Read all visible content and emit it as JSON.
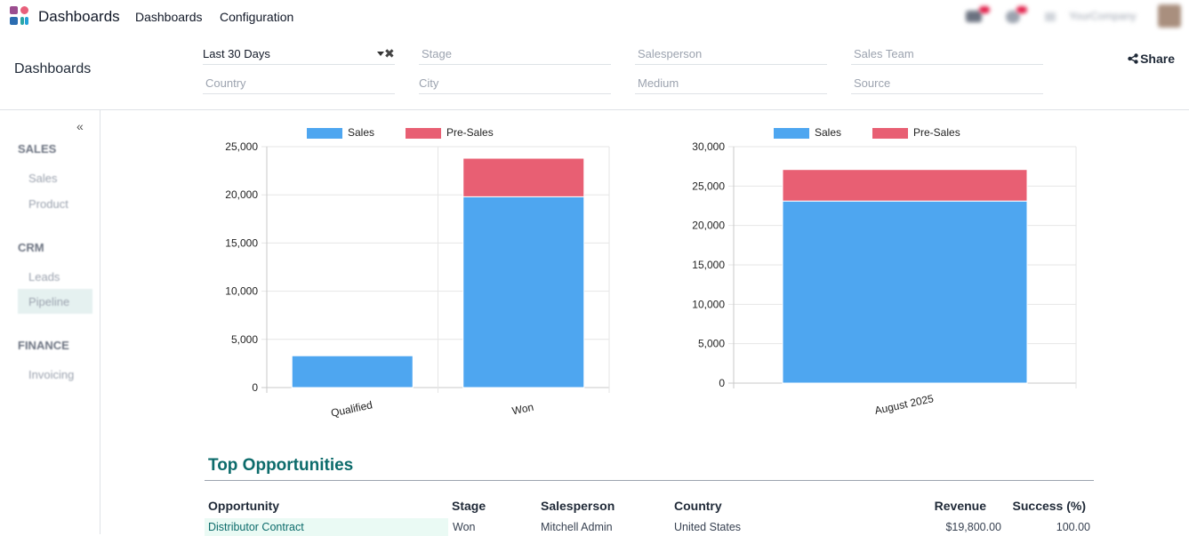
{
  "topbar": {
    "app_title": "Dashboards",
    "menu": [
      "Dashboards",
      "Configuration"
    ],
    "company": "YourCompany"
  },
  "control": {
    "breadcrumb": "Dashboards",
    "filters": {
      "date_range": "Last 30 Days",
      "stage": "Stage",
      "salesperson": "Salesperson",
      "sales_team": "Sales Team",
      "country": "Country",
      "city": "City",
      "medium": "Medium",
      "source": "Source"
    },
    "share_label": "Share"
  },
  "sidebar": {
    "collapse_label": "«",
    "sections": [
      {
        "title": "SALES",
        "items": [
          "Sales",
          "Product"
        ]
      },
      {
        "title": "CRM",
        "items": [
          "Leads",
          "Pipeline"
        ]
      },
      {
        "title": "FINANCE",
        "items": [
          "Invoicing"
        ]
      }
    ],
    "active_item": "Pipeline"
  },
  "colors": {
    "sales": "#4ea6f0",
    "pre_sales": "#e85f73",
    "accent": "#0c6b6b",
    "link_bg": "#eafaf4"
  },
  "chart_data": [
    {
      "type": "bar",
      "stacked": true,
      "categories": [
        "Qualified",
        "Won"
      ],
      "series": [
        {
          "name": "Sales",
          "values": [
            3300,
            19800
          ]
        },
        {
          "name": "Pre-Sales",
          "values": [
            0,
            4000
          ]
        }
      ],
      "ylim": [
        0,
        25000
      ],
      "yticks": [
        0,
        5000,
        10000,
        15000,
        20000,
        25000
      ],
      "ytick_labels": [
        "0",
        "5,000",
        "10,000",
        "15,000",
        "20,000",
        "25,000"
      ],
      "legend": "top-center",
      "grid": true
    },
    {
      "type": "bar",
      "stacked": true,
      "categories": [
        "August 2025"
      ],
      "series": [
        {
          "name": "Sales",
          "values": [
            23100
          ]
        },
        {
          "name": "Pre-Sales",
          "values": [
            4000
          ]
        }
      ],
      "ylim": [
        0,
        30000
      ],
      "yticks": [
        0,
        5000,
        10000,
        15000,
        20000,
        25000,
        30000
      ],
      "ytick_labels": [
        "0",
        "5,000",
        "10,000",
        "15,000",
        "20,000",
        "25,000",
        "30,000"
      ],
      "legend": "top-center",
      "grid": true
    }
  ],
  "top_opportunities": {
    "title": "Top Opportunities",
    "columns": [
      "Opportunity",
      "Stage",
      "Salesperson",
      "Country",
      "Revenue",
      "Success (%)"
    ],
    "rows": [
      {
        "opportunity": "Distributor Contract",
        "stage": "Won",
        "salesperson": "Mitchell Admin",
        "country": "United States",
        "revenue": "$19,800.00",
        "success": "100.00"
      }
    ]
  }
}
